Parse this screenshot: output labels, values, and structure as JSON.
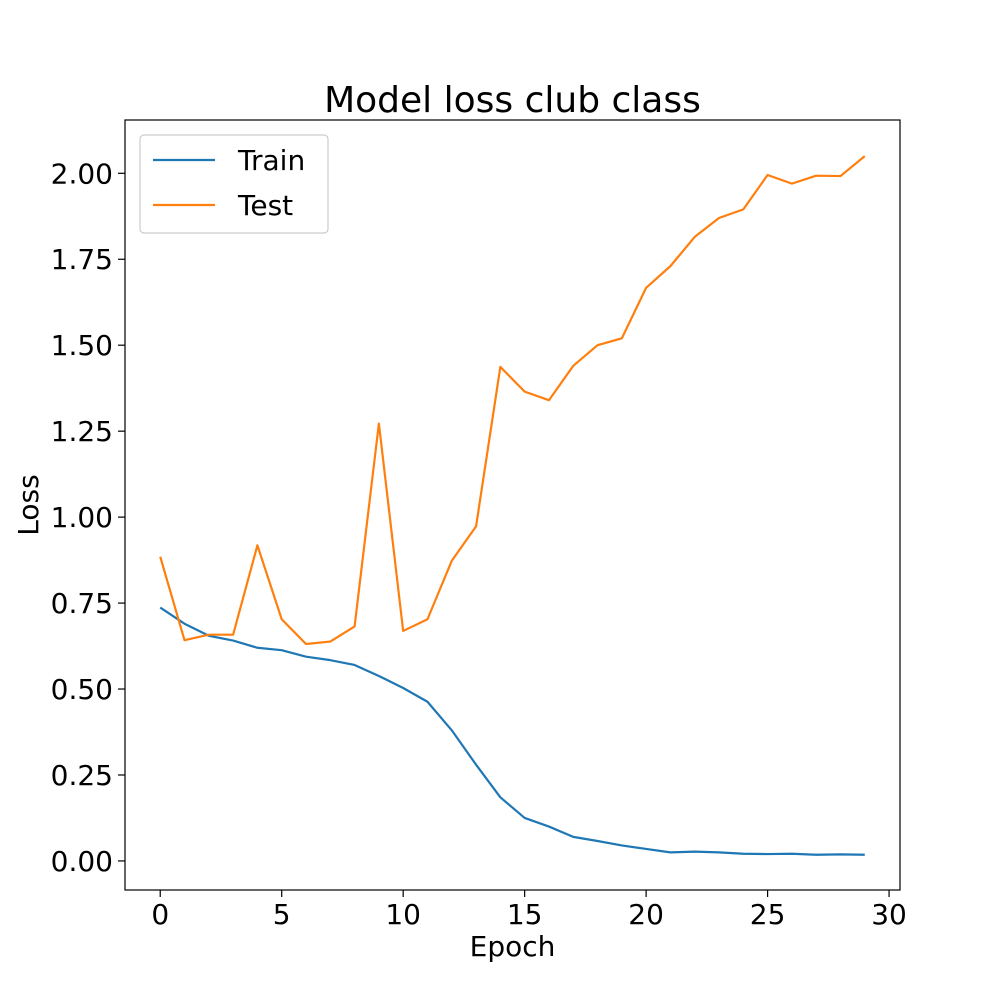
{
  "chart_data": {
    "type": "line",
    "title": "Model loss club class",
    "xlabel": "Epoch",
    "ylabel": "Loss",
    "xlim": [
      -1.45,
      30.45
    ],
    "ylim": [
      -0.0845,
      2.155
    ],
    "xticks": [
      0,
      5,
      10,
      15,
      20,
      25,
      30
    ],
    "yticks": [
      0.0,
      0.25,
      0.5,
      0.75,
      1.0,
      1.25,
      1.5,
      1.75,
      2.0
    ],
    "ytick_labels": [
      "0.00",
      "0.25",
      "0.50",
      "0.75",
      "1.00",
      "1.25",
      "1.50",
      "1.75",
      "2.00"
    ],
    "grid": false,
    "legend_position": "top-left",
    "x": [
      0,
      1,
      2,
      3,
      4,
      5,
      6,
      7,
      8,
      9,
      10,
      11,
      12,
      13,
      14,
      15,
      16,
      17,
      18,
      19,
      20,
      21,
      22,
      23,
      24,
      25,
      26,
      27,
      28,
      29
    ],
    "series": [
      {
        "name": "Train",
        "color": "#1f77b4",
        "values": [
          0.737,
          0.69,
          0.655,
          0.641,
          0.62,
          0.613,
          0.594,
          0.584,
          0.57,
          0.538,
          0.503,
          0.463,
          0.38,
          0.28,
          0.185,
          0.125,
          0.1,
          0.07,
          0.058,
          0.045,
          0.035,
          0.025,
          0.027,
          0.025,
          0.021,
          0.02,
          0.021,
          0.018,
          0.019,
          0.018
        ]
      },
      {
        "name": "Test",
        "color": "#ff7f0e",
        "values": [
          0.885,
          0.642,
          0.658,
          0.658,
          0.918,
          0.703,
          0.631,
          0.638,
          0.682,
          1.272,
          0.669,
          0.703,
          0.873,
          0.973,
          1.437,
          1.365,
          1.34,
          1.44,
          1.5,
          1.52,
          1.667,
          1.73,
          1.815,
          1.87,
          1.895,
          1.995,
          1.97,
          1.993,
          1.992,
          2.05
        ]
      }
    ]
  }
}
